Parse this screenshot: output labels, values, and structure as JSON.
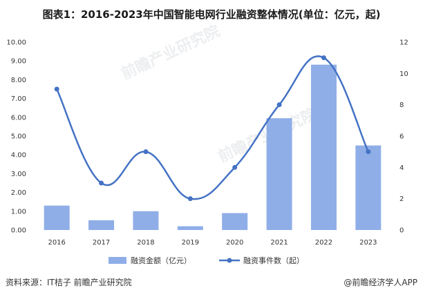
{
  "header": {
    "title": "图表1：2016-2023年中国智能电网行业融资整体情况(单位：亿元，起)"
  },
  "footer": {
    "source": "资料来源：IT桔子 前瞻产业研究院",
    "brand": "@前瞻经济学人APP"
  },
  "watermark": {
    "text": "前瞻产业研究院"
  },
  "chart_data": {
    "type": "bar",
    "categories": [
      "2016",
      "2017",
      "2018",
      "2019",
      "2020",
      "2021",
      "2022",
      "2023"
    ],
    "series": [
      {
        "name": "融资金额（亿元）",
        "type": "bar",
        "axis": "left",
        "color": "#8faee8",
        "values": [
          1.3,
          0.52,
          1.0,
          0.2,
          0.9,
          5.95,
          8.8,
          4.5
        ]
      },
      {
        "name": "融资事件数（起）",
        "type": "line",
        "axis": "right",
        "color": "#4472c4",
        "values": [
          9,
          3,
          5,
          2,
          4,
          8,
          11,
          5
        ]
      }
    ],
    "y_left": {
      "min": 0,
      "max": 10,
      "step": 1,
      "ticks": [
        "0.00",
        "1.00",
        "2.00",
        "3.00",
        "4.00",
        "5.00",
        "6.00",
        "7.00",
        "8.00",
        "9.00",
        "10.00"
      ]
    },
    "y_right": {
      "min": 0,
      "max": 12,
      "step": 2,
      "ticks": [
        "0",
        "2",
        "4",
        "6",
        "8",
        "10",
        "12"
      ]
    },
    "grid": false,
    "legend": "bottom"
  }
}
